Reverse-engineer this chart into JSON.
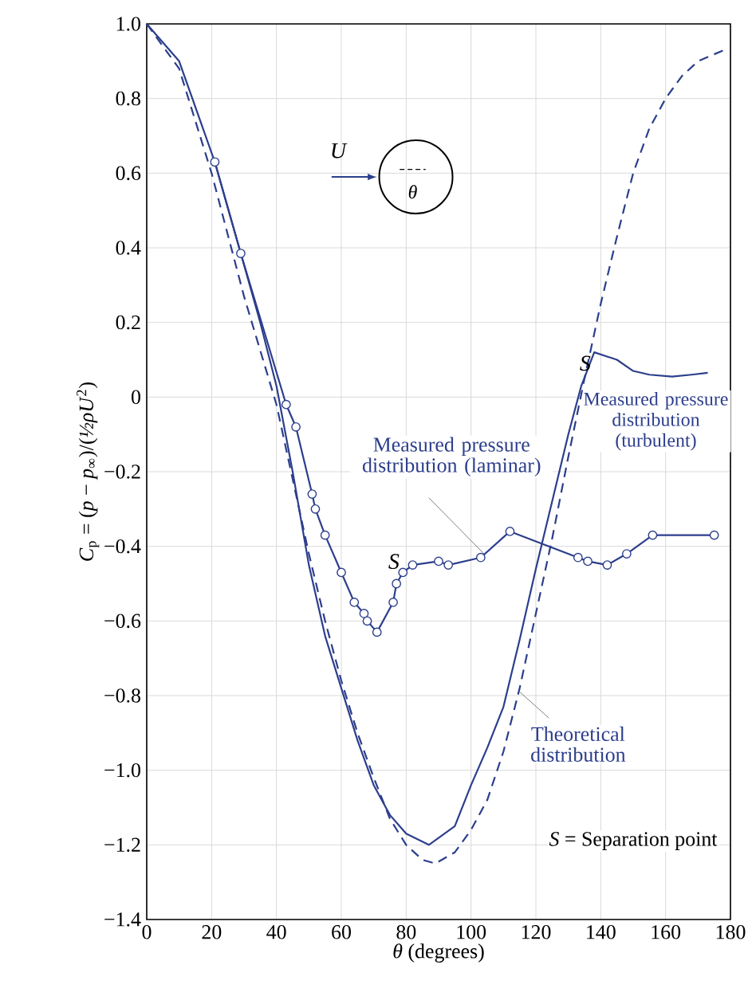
{
  "chart_data": {
    "type": "line",
    "xlabel": "*θ* (degrees)",
    "ylabel": "*C*$_{p}$ = (*p* − *p*$_{∞}$)/(*½ρU*$^{2}$)",
    "xlim": [
      0,
      180
    ],
    "ylim": [
      -1.4,
      1.0
    ],
    "xticks": [
      0,
      20,
      40,
      60,
      80,
      100,
      120,
      140,
      160,
      180
    ],
    "yticks": [
      {
        "value": 1.0,
        "label": "1.0"
      },
      {
        "value": 0.8,
        "label": "0.8"
      },
      {
        "value": 0.6,
        "label": "0.6"
      },
      {
        "value": 0.4,
        "label": "0.4"
      },
      {
        "value": 0.2,
        "label": "0.2"
      },
      {
        "value": 0,
        "label": "0"
      },
      {
        "value": -0.2,
        "label": "−0.2"
      },
      {
        "value": -0.4,
        "label": "−0.4"
      },
      {
        "value": -0.6,
        "label": "−0.6"
      },
      {
        "value": -0.8,
        "label": "−0.8"
      },
      {
        "value": -1.0,
        "label": "−1.0"
      },
      {
        "value": -1.2,
        "label": "−1.2"
      },
      {
        "value": -1.4,
        "label": "−1.4"
      }
    ],
    "grid": true,
    "legend": false,
    "series": [
      {
        "name": "Measured pressure distribution (turbulent)",
        "color": "#2c3e8c",
        "line_style": "solid",
        "marker": "none",
        "x": [
          0,
          10,
          21,
          29,
          35,
          40,
          45,
          50,
          55,
          60,
          65,
          70,
          75,
          80,
          87,
          95,
          100,
          105,
          110,
          115,
          120,
          125,
          130,
          134,
          138,
          145,
          150,
          155,
          162,
          168,
          173
        ],
        "values": [
          1.0,
          0.9,
          0.63,
          0.385,
          0.2,
          0.03,
          -0.2,
          -0.45,
          -0.64,
          -0.78,
          -0.92,
          -1.04,
          -1.12,
          -1.17,
          -1.2,
          -1.15,
          -1.04,
          -0.94,
          -0.83,
          -0.65,
          -0.46,
          -0.28,
          -0.1,
          0.03,
          0.12,
          0.1,
          0.07,
          0.06,
          0.055,
          0.06,
          0.065
        ]
      },
      {
        "name": "Measured pressure distribution (laminar)",
        "color": "#2c3e8c",
        "line_style": "solid",
        "marker": "circle",
        "x": [
          21,
          29,
          43,
          46,
          51,
          52,
          55,
          60,
          64,
          67,
          68,
          71,
          76,
          77,
          79,
          82,
          90,
          93,
          103,
          112,
          133,
          136,
          142,
          148,
          156,
          175
        ],
        "values": [
          0.63,
          0.385,
          -0.02,
          -0.08,
          -0.26,
          -0.3,
          -0.37,
          -0.47,
          -0.55,
          -0.58,
          -0.6,
          -0.63,
          -0.55,
          -0.5,
          -0.47,
          -0.45,
          -0.44,
          -0.45,
          -0.43,
          -0.36,
          -0.43,
          -0.44,
          -0.45,
          -0.42,
          -0.37,
          -0.37
        ]
      },
      {
        "name": "Theoretical distribution",
        "color": "#2c3e8c",
        "line_style": "dashed",
        "marker": "none",
        "x": [
          0,
          10,
          20,
          30,
          40,
          45,
          50,
          55,
          60,
          65,
          70,
          75,
          80,
          85,
          89,
          95,
          100,
          105,
          110,
          115,
          120,
          125,
          130,
          135,
          140,
          145,
          150,
          155,
          160,
          165,
          170,
          178
        ],
        "values": [
          1.0,
          0.88,
          0.6,
          0.27,
          -0.02,
          -0.22,
          -0.42,
          -0.6,
          -0.76,
          -0.9,
          -1.02,
          -1.13,
          -1.2,
          -1.24,
          -1.25,
          -1.22,
          -1.16,
          -1.08,
          -0.95,
          -0.78,
          -0.58,
          -0.38,
          -0.16,
          0.05,
          0.25,
          0.43,
          0.6,
          0.72,
          0.8,
          0.86,
          0.9,
          0.93
        ]
      }
    ],
    "annotations": [
      "U",
      "θ",
      "*S* = Separation point",
      {
        "text": "S",
        "x": 82,
        "y": -0.45
      },
      {
        "text": "S",
        "x": 138,
        "y": 0.12
      }
    ]
  }
}
